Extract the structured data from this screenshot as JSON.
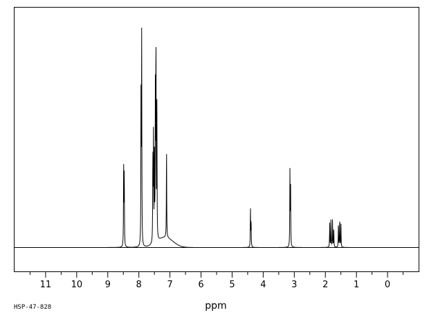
{
  "chart_data": {
    "type": "line",
    "title": "",
    "xlabel": "ppm",
    "ylabel": "",
    "xlim": [
      12,
      -1
    ],
    "ylim": [
      -0.12,
      1.0
    ],
    "x_reversed": true,
    "grid": false,
    "x_ticks": [
      {
        "value": 11,
        "label": "11"
      },
      {
        "value": 10,
        "label": "10"
      },
      {
        "value": 9,
        "label": "9"
      },
      {
        "value": 8,
        "label": "8"
      },
      {
        "value": 7,
        "label": "7"
      },
      {
        "value": 6,
        "label": "6"
      },
      {
        "value": 5,
        "label": "5"
      },
      {
        "value": 4,
        "label": "4"
      },
      {
        "value": 3,
        "label": "3"
      },
      {
        "value": 2,
        "label": "2"
      },
      {
        "value": 1,
        "label": "1"
      },
      {
        "value": 0,
        "label": "0"
      }
    ],
    "minor_ticks": [
      11.5,
      10.5,
      9.5,
      8.5,
      7.5,
      6.5,
      5.5,
      4.5,
      3.5,
      2.5,
      1.5,
      0.5,
      -0.5
    ],
    "series": [
      {
        "color": "#000000",
        "peaks": [
          {
            "ppm": 8.49,
            "height": 0.37
          },
          {
            "ppm": 8.47,
            "height": 0.34
          },
          {
            "ppm": 7.93,
            "height": 0.74
          },
          {
            "ppm": 7.91,
            "height": 1.0
          },
          {
            "ppm": 7.55,
            "height": 0.4
          },
          {
            "ppm": 7.53,
            "height": 0.49
          },
          {
            "ppm": 7.5,
            "height": 0.42
          },
          {
            "ppm": 7.47,
            "height": 0.66
          },
          {
            "ppm": 7.45,
            "height": 0.92
          },
          {
            "ppm": 7.42,
            "height": 0.6
          },
          {
            "ppm": 7.11,
            "height": 0.41
          },
          {
            "ppm": 4.41,
            "height": 0.17
          },
          {
            "ppm": 4.39,
            "height": 0.12
          },
          {
            "ppm": 3.14,
            "height": 0.34
          },
          {
            "ppm": 3.12,
            "height": 0.29
          },
          {
            "ppm": 1.86,
            "height": 0.11
          },
          {
            "ppm": 1.82,
            "height": 0.13
          },
          {
            "ppm": 1.77,
            "height": 0.13
          },
          {
            "ppm": 1.73,
            "height": 0.09
          },
          {
            "ppm": 1.58,
            "height": 0.11
          },
          {
            "ppm": 1.54,
            "height": 0.13
          },
          {
            "ppm": 1.5,
            "height": 0.11
          }
        ],
        "broad_humps": [
          {
            "ppm": 7.15,
            "height": 0.045,
            "width": 0.35
          }
        ]
      }
    ]
  },
  "footer": {
    "sample_id": "HSP-47-828"
  }
}
